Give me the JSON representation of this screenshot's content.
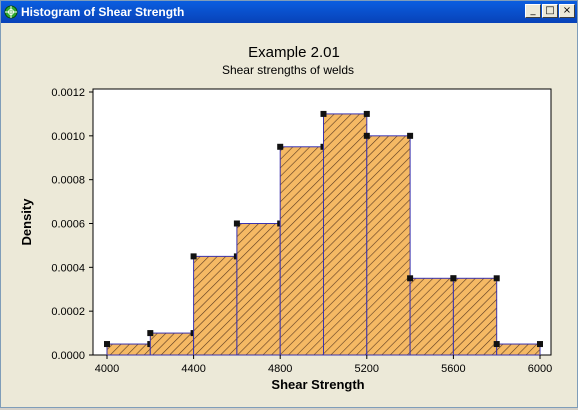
{
  "window": {
    "title": "Histogram of Shear Strength",
    "icon": "graph-icon",
    "minimize_label": "_",
    "maximize_label": "□",
    "close_label": "×"
  },
  "colors": {
    "titlebar": "#0842b8",
    "bar_fill": "#f5b964",
    "bar_outline": "#3a33b0",
    "hatch": "#5a3a20",
    "background": "#ece9d8"
  },
  "chart_data": {
    "type": "bar",
    "title": "Example 2.01",
    "subtitle": "Shear strengths of welds",
    "xlabel": "Shear Strength",
    "ylabel": "Density",
    "xlim": [
      4000,
      6000
    ],
    "ylim": [
      0,
      0.0012
    ],
    "bin_edges": [
      4000,
      4200,
      4400,
      4600,
      4800,
      5000,
      5200,
      5400,
      5600,
      5800,
      6000
    ],
    "values": [
      5e-05,
      0.0001,
      0.00045,
      0.0006,
      0.00095,
      0.0011,
      0.001,
      0.00035,
      0.00035,
      5e-05
    ],
    "x_ticks": [
      "4000",
      "4400",
      "4800",
      "5200",
      "5600",
      "6000"
    ],
    "x_tick_values": [
      4000,
      4400,
      4800,
      5200,
      5600,
      6000
    ],
    "y_ticks": [
      "0.0000",
      "0.0002",
      "0.0004",
      "0.0006",
      "0.0008",
      "0.0010",
      "0.0012"
    ],
    "y_tick_values": [
      0,
      0.0002,
      0.0004,
      0.0006,
      0.0008,
      0.001,
      0.0012
    ],
    "grid": false,
    "legend": "none"
  }
}
